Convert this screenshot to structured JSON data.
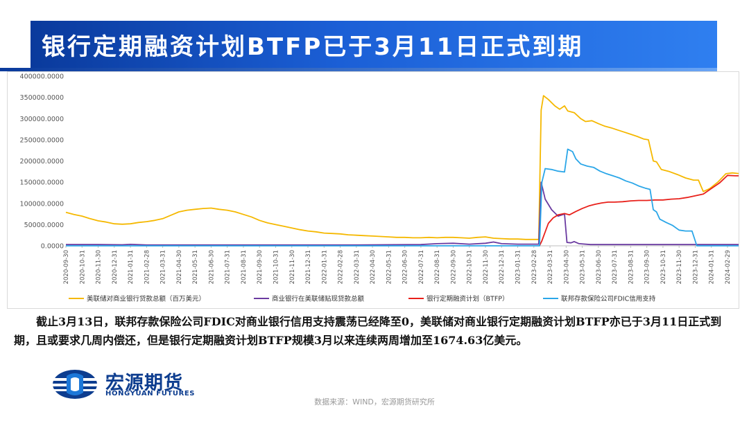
{
  "header": {
    "title": "银行定期融资计划BTFP已于3月11日正式到期"
  },
  "colors": {
    "title_bar": "#1b5fd6",
    "series_fed_loans": "#f5b800",
    "series_discount": "#6a3aa0",
    "series_btfp": "#e8201a",
    "series_fdic": "#2aa6e8"
  },
  "chart_data": {
    "type": "line",
    "title": "",
    "xlabel": "",
    "ylabel": "",
    "ylim": [
      0,
      400000
    ],
    "y_ticks": [
      "0.0000",
      "50000.0000",
      "100000.0000",
      "150000.0000",
      "200000.0000",
      "250000.0000",
      "300000.0000",
      "350000.0000",
      "400000.0000"
    ],
    "x_ticks": [
      "2020-09-30",
      "2020-10-31",
      "2020-11-30",
      "2020-12-31",
      "2021-01-31",
      "2021-02-28",
      "2021-03-31",
      "2021-04-30",
      "2021-05-31",
      "2021-06-30",
      "2021-07-31",
      "2021-08-31",
      "2021-09-30",
      "2021-10-31",
      "2021-11-30",
      "2021-12-31",
      "2022-01-31",
      "2022-02-28",
      "2022-03-31",
      "2022-04-30",
      "2022-05-31",
      "2022-06-30",
      "2022-07-31",
      "2022-08-31",
      "2022-09-30",
      "2022-10-31",
      "2022-11-30",
      "2022-12-31",
      "2023-01-31",
      "2023-02-28",
      "2023-03-31",
      "2023-04-30",
      "2023-05-31",
      "2023-06-30",
      "2023-07-31",
      "2023-08-31",
      "2023-09-30",
      "2023-10-31",
      "2023-11-30",
      "2023-12-31",
      "2024-01-31",
      "2024-02-29"
    ],
    "grid": false,
    "legend_position": "bottom",
    "series": [
      {
        "name": "美联储对商业银行贷款总额（百万美元）",
        "color": "#f5b800",
        "points": [
          [
            0,
            79000
          ],
          [
            0.5,
            74000
          ],
          [
            1,
            70000
          ],
          [
            1.5,
            64000
          ],
          [
            2,
            59000
          ],
          [
            2.5,
            56000
          ],
          [
            3,
            52000
          ],
          [
            3.5,
            51000
          ],
          [
            4,
            52000
          ],
          [
            4.5,
            55000
          ],
          [
            5,
            57000
          ],
          [
            5.5,
            60000
          ],
          [
            6,
            64000
          ],
          [
            6.5,
            72000
          ],
          [
            7,
            80000
          ],
          [
            7.5,
            84000
          ],
          [
            8,
            86000
          ],
          [
            8.5,
            88000
          ],
          [
            9,
            89000
          ],
          [
            9.5,
            86000
          ],
          [
            10,
            84000
          ],
          [
            10.5,
            80000
          ],
          [
            11,
            74000
          ],
          [
            11.5,
            68000
          ],
          [
            12,
            60000
          ],
          [
            12.5,
            54000
          ],
          [
            13,
            50000
          ],
          [
            13.5,
            46000
          ],
          [
            14,
            42000
          ],
          [
            14.5,
            38000
          ],
          [
            15,
            35000
          ],
          [
            15.5,
            33000
          ],
          [
            16,
            30000
          ],
          [
            16.5,
            29000
          ],
          [
            17,
            28000
          ],
          [
            17.5,
            26000
          ],
          [
            18,
            25000
          ],
          [
            18.5,
            24000
          ],
          [
            19,
            23000
          ],
          [
            19.5,
            22000
          ],
          [
            20,
            21000
          ],
          [
            20.5,
            20000
          ],
          [
            21,
            20000
          ],
          [
            21.5,
            19000
          ],
          [
            22,
            19000
          ],
          [
            22.5,
            20000
          ],
          [
            23,
            19000
          ],
          [
            23.5,
            20000
          ],
          [
            24,
            20000
          ],
          [
            24.5,
            19000
          ],
          [
            25,
            18000
          ],
          [
            25.5,
            20000
          ],
          [
            26,
            21000
          ],
          [
            26.5,
            18000
          ],
          [
            27,
            17000
          ],
          [
            27.5,
            16000
          ],
          [
            28,
            16000
          ],
          [
            28.5,
            15000
          ],
          [
            29,
            15000
          ],
          [
            29.3,
            15000
          ],
          [
            29.45,
            320000
          ],
          [
            29.6,
            354000
          ],
          [
            29.9,
            345000
          ],
          [
            30.3,
            330000
          ],
          [
            30.6,
            322000
          ],
          [
            30.9,
            330000
          ],
          [
            31.1,
            318000
          ],
          [
            31.5,
            314000
          ],
          [
            31.9,
            300000
          ],
          [
            32.2,
            293000
          ],
          [
            32.6,
            295000
          ],
          [
            33,
            288000
          ],
          [
            33.4,
            282000
          ],
          [
            33.8,
            278000
          ],
          [
            34.2,
            273000
          ],
          [
            34.6,
            268000
          ],
          [
            35,
            263000
          ],
          [
            35.4,
            258000
          ],
          [
            35.8,
            252000
          ],
          [
            36.1,
            250000
          ],
          [
            36.4,
            200000
          ],
          [
            36.6,
            198000
          ],
          [
            36.9,
            180000
          ],
          [
            37.4,
            175000
          ],
          [
            37.9,
            168000
          ],
          [
            38.4,
            160000
          ],
          [
            38.9,
            155000
          ],
          [
            39.2,
            155000
          ],
          [
            39.5,
            128000
          ],
          [
            39.9,
            135000
          ],
          [
            40.4,
            150000
          ],
          [
            40.9,
            170000
          ],
          [
            41.3,
            172000
          ],
          [
            41.8,
            170000
          ],
          [
            42.3,
            168000
          ],
          [
            42.7,
            170000
          ]
        ]
      },
      {
        "name": "商业银行在美联储贴现贷款总额",
        "color": "#6a3aa0",
        "points": [
          [
            0,
            3000
          ],
          [
            2,
            3000
          ],
          [
            3.5,
            2500
          ],
          [
            4,
            3500
          ],
          [
            5,
            2000
          ],
          [
            7,
            2000
          ],
          [
            10,
            2000
          ],
          [
            14,
            2000
          ],
          [
            18,
            2000
          ],
          [
            22,
            3000
          ],
          [
            23,
            5000
          ],
          [
            24,
            6000
          ],
          [
            25,
            4000
          ],
          [
            26,
            6000
          ],
          [
            26.5,
            9000
          ],
          [
            27,
            5000
          ],
          [
            28,
            4000
          ],
          [
            29.3,
            4000
          ],
          [
            29.45,
            150000
          ],
          [
            29.7,
            110000
          ],
          [
            30.1,
            85000
          ],
          [
            30.5,
            70000
          ],
          [
            30.9,
            75000
          ],
          [
            31.05,
            8000
          ],
          [
            31.3,
            7000
          ],
          [
            31.5,
            10000
          ],
          [
            31.8,
            5000
          ],
          [
            32.5,
            3000
          ],
          [
            34,
            3000
          ],
          [
            36,
            3000
          ],
          [
            38,
            3000
          ],
          [
            40,
            3000
          ],
          [
            42.7,
            3000
          ]
        ]
      },
      {
        "name": "银行定期融资计划（BTFP）",
        "color": "#e8201a",
        "points": [
          [
            29.35,
            0
          ],
          [
            29.5,
            12000
          ],
          [
            29.9,
            53000
          ],
          [
            30.2,
            66000
          ],
          [
            30.5,
            73000
          ],
          [
            30.9,
            76000
          ],
          [
            31.2,
            73000
          ],
          [
            31.6,
            81000
          ],
          [
            32,
            88000
          ],
          [
            32.4,
            94000
          ],
          [
            32.8,
            98000
          ],
          [
            33.2,
            101000
          ],
          [
            33.6,
            103000
          ],
          [
            34,
            103000
          ],
          [
            34.5,
            104000
          ],
          [
            35,
            106000
          ],
          [
            35.5,
            107000
          ],
          [
            36,
            107000
          ],
          [
            36.5,
            108000
          ],
          [
            37,
            108000
          ],
          [
            37.5,
            110000
          ],
          [
            38,
            111000
          ],
          [
            38.5,
            114000
          ],
          [
            39,
            118000
          ],
          [
            39.5,
            122000
          ],
          [
            40,
            135000
          ],
          [
            40.5,
            148000
          ],
          [
            41,
            166000
          ],
          [
            41.5,
            165000
          ],
          [
            42,
            165000
          ],
          [
            42.4,
            165000
          ],
          [
            42.7,
            168000
          ]
        ]
      },
      {
        "name": "联邦存款保险公司FDIC信用支持",
        "color": "#2aa6e8",
        "points": [
          [
            0,
            0
          ],
          [
            29.35,
            0
          ],
          [
            29.5,
            150000
          ],
          [
            29.7,
            182000
          ],
          [
            30.1,
            180000
          ],
          [
            30.5,
            176000
          ],
          [
            30.9,
            174000
          ],
          [
            31.1,
            228000
          ],
          [
            31.4,
            222000
          ],
          [
            31.6,
            205000
          ],
          [
            31.9,
            193000
          ],
          [
            32.3,
            188000
          ],
          [
            32.7,
            185000
          ],
          [
            33.1,
            176000
          ],
          [
            33.5,
            170000
          ],
          [
            33.9,
            165000
          ],
          [
            34.3,
            160000
          ],
          [
            34.7,
            153000
          ],
          [
            35.1,
            148000
          ],
          [
            35.5,
            141000
          ],
          [
            35.9,
            136000
          ],
          [
            36.2,
            133000
          ],
          [
            36.4,
            85000
          ],
          [
            36.6,
            80000
          ],
          [
            36.8,
            63000
          ],
          [
            37.2,
            55000
          ],
          [
            37.6,
            48000
          ],
          [
            38,
            37000
          ],
          [
            38.4,
            35000
          ],
          [
            38.8,
            35000
          ],
          [
            39.1,
            0
          ],
          [
            42.7,
            0
          ]
        ]
      }
    ]
  },
  "caption": {
    "text": "截止3月13日，联邦存款保险公司FDIC对商业银行信用支持震荡已经降至0，美联储对商业银行定期融资计划BTFP亦已于3月11日正式到期，且或要求几周内偿还，但是银行定期融资计划BTFP规模3月以来连续两周增加至1674.63亿美元。"
  },
  "logo": {
    "cn": "宏源期货",
    "en": "HONGYUAN FUTURES"
  },
  "source": {
    "text": "数据来源：WIND，宏源期货研究所"
  }
}
